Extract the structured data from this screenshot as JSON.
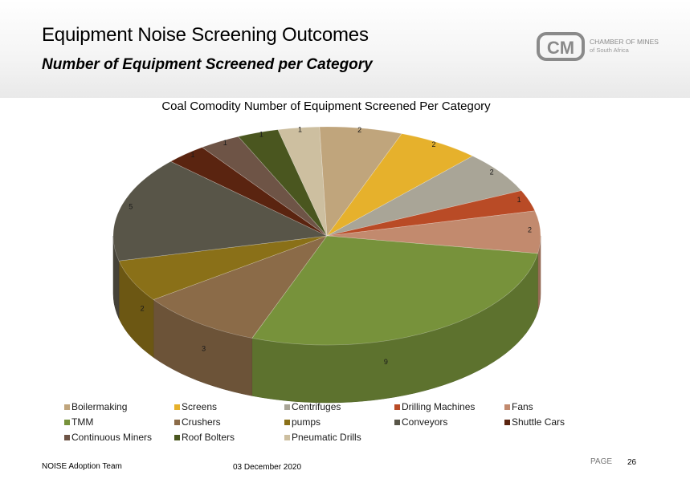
{
  "slide": {
    "title": "Equipment Noise Screening Outcomes",
    "subtitle": "Number of Equipment Screened per Category"
  },
  "logo": {
    "mark": "CM",
    "line1": "CHAMBER OF MINES",
    "line2": "of South Africa",
    "color": "#8a8a8a"
  },
  "chart_data": {
    "type": "pie",
    "title": "Coal Comodity Number of Equipment Screened Per Category",
    "categories": [
      "Boilermaking",
      "Screens",
      "Centrifuges",
      "Drilling Machines",
      "Fans",
      "TMM",
      "Crushers",
      "pumps",
      "Conveyors",
      "Shuttle Cars",
      "Continuous Miners",
      "Roof Bolters",
      "Pneumatic Drills"
    ],
    "values": [
      2,
      2,
      2,
      1,
      2,
      9,
      3,
      2,
      5,
      1,
      1,
      1,
      1
    ],
    "colors": [
      "#c0a57c",
      "#e6b12c",
      "#a9a597",
      "#b94b26",
      "#c28a6e",
      "#77923b",
      "#8b6b48",
      "#8a7018",
      "#585548",
      "#5a2410",
      "#6e5446",
      "#4a561f",
      "#cdbfa0"
    ],
    "legend_position": "bottom",
    "style": "3d"
  },
  "footer": {
    "team": "NOISE Adoption Team",
    "date": "03 December 2020",
    "page_label": "PAGE",
    "page_number": "26"
  }
}
